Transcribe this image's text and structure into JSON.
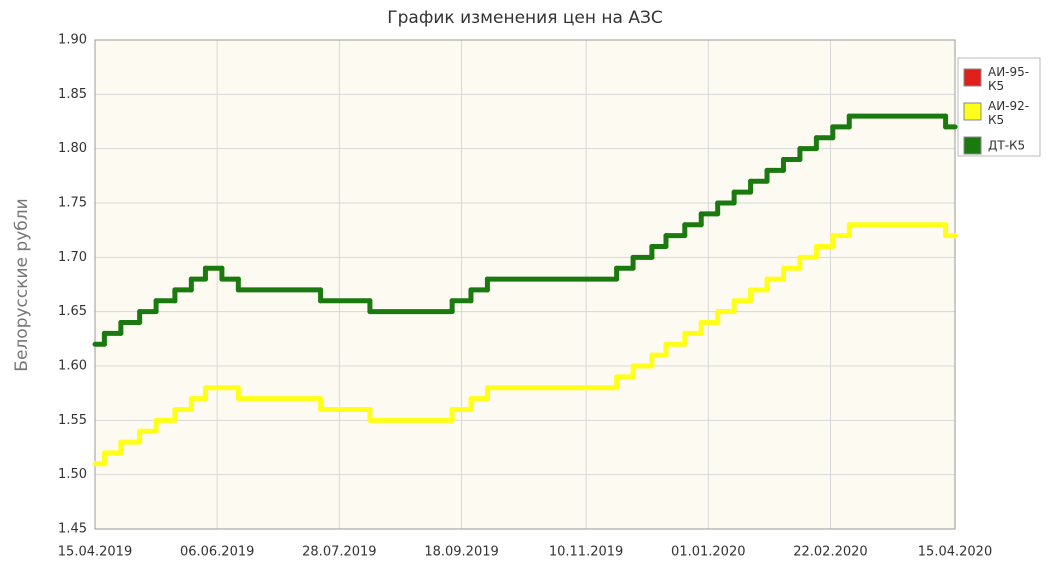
{
  "chart_data": {
    "type": "step-line",
    "title": "График изменения цен на АЗС",
    "y_label": "Белорусские рубли",
    "x": [
      "15.04.2019",
      "19.04.2019",
      "26.04.2019",
      "04.05.2019",
      "11.05.2019",
      "19.05.2019",
      "26.05.2019",
      "01.06.2019",
      "08.06.2019",
      "15.06.2019",
      "20.07.2019",
      "10.08.2019",
      "14.09.2019",
      "22.09.2019",
      "29.09.2019",
      "23.11.2019",
      "30.11.2019",
      "08.12.2019",
      "14.12.2019",
      "22.12.2019",
      "29.12.2019",
      "05.01.2020",
      "12.01.2020",
      "19.01.2020",
      "26.01.2020",
      "02.02.2020",
      "09.02.2020",
      "16.02.2020",
      "23.02.2020",
      "01.03.2020",
      "11.04.2020",
      "15.04.2020"
    ],
    "series": [
      {
        "name": "АИ-95-К5",
        "color": "#e0201a",
        "values": [
          null,
          null,
          null,
          null,
          null,
          null,
          null,
          null,
          null,
          null,
          null,
          null,
          null,
          null,
          null,
          null,
          null,
          null,
          null,
          null,
          null,
          null,
          null,
          null,
          null,
          null,
          null,
          null,
          null,
          null,
          null,
          null
        ]
      },
      {
        "name": "АИ-92-К5",
        "color": "#ffff1a",
        "values": [
          1.51,
          1.52,
          1.53,
          1.54,
          1.55,
          1.56,
          1.57,
          1.58,
          1.58,
          1.57,
          1.56,
          1.55,
          1.56,
          1.57,
          1.58,
          1.59,
          1.6,
          1.61,
          1.62,
          1.63,
          1.64,
          1.65,
          1.66,
          1.67,
          1.68,
          1.69,
          1.7,
          1.71,
          1.72,
          1.73,
          1.72,
          1.72
        ]
      },
      {
        "name": "ДТ-К5",
        "color": "#1a7a10",
        "values": [
          1.62,
          1.63,
          1.64,
          1.65,
          1.66,
          1.67,
          1.68,
          1.69,
          1.68,
          1.67,
          1.66,
          1.65,
          1.66,
          1.67,
          1.68,
          1.69,
          1.7,
          1.71,
          1.72,
          1.73,
          1.74,
          1.75,
          1.76,
          1.77,
          1.78,
          1.79,
          1.8,
          1.81,
          1.82,
          1.83,
          1.82,
          1.82
        ]
      }
    ],
    "xlim": [
      "15.04.2019",
      "15.04.2020"
    ],
    "xticks": [
      "15.04.2019",
      "06.06.2019",
      "28.07.2019",
      "18.09.2019",
      "10.11.2019",
      "01.01.2020",
      "22.02.2020",
      "15.04.2020"
    ],
    "ylim": [
      1.45,
      1.9
    ],
    "yticks": [
      {
        "value": 1.45,
        "label": "1.45"
      },
      {
        "value": 1.5,
        "label": "1.50"
      },
      {
        "value": 1.55,
        "label": "1.55"
      },
      {
        "value": 1.6,
        "label": "1.60"
      },
      {
        "value": 1.65,
        "label": "1.65"
      },
      {
        "value": 1.7,
        "label": "1.70"
      },
      {
        "value": 1.75,
        "label": "1.75"
      },
      {
        "value": 1.8,
        "label": "1.80"
      },
      {
        "value": 1.85,
        "label": "1.85"
      },
      {
        "value": 1.9,
        "label": "1.90"
      }
    ],
    "grid": true,
    "legend": "right"
  }
}
